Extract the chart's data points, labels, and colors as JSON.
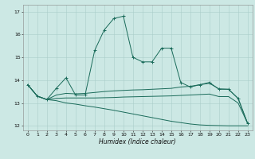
{
  "xlabel": "Humidex (Indice chaleur)",
  "bg_color": "#cce8e4",
  "grid_color": "#aaceca",
  "line_color": "#1a6b5a",
  "xlim": [
    -0.5,
    23.5
  ],
  "ylim": [
    11.8,
    17.3
  ],
  "yticks": [
    12,
    13,
    14,
    15,
    16,
    17
  ],
  "xticks": [
    0,
    1,
    2,
    3,
    4,
    5,
    6,
    7,
    8,
    9,
    10,
    11,
    12,
    13,
    14,
    15,
    16,
    17,
    18,
    19,
    20,
    21,
    22,
    23
  ],
  "y_max": [
    13.8,
    13.3,
    13.15,
    13.65,
    14.1,
    13.35,
    13.35,
    15.3,
    16.2,
    16.7,
    16.8,
    15.0,
    14.8,
    14.8,
    15.4,
    15.4,
    13.9,
    13.7,
    13.8,
    13.9,
    13.6,
    13.6,
    13.2,
    12.1
  ],
  "y_m2": [
    13.8,
    13.3,
    13.15,
    13.35,
    13.42,
    13.4,
    13.42,
    13.46,
    13.5,
    13.53,
    13.55,
    13.57,
    13.58,
    13.6,
    13.62,
    13.64,
    13.7,
    13.73,
    13.8,
    13.86,
    13.62,
    13.6,
    13.2,
    12.1
  ],
  "y_m3": [
    13.8,
    13.3,
    13.15,
    13.2,
    13.22,
    13.22,
    13.22,
    13.22,
    13.23,
    13.24,
    13.26,
    13.27,
    13.28,
    13.29,
    13.3,
    13.31,
    13.33,
    13.35,
    13.37,
    13.39,
    13.28,
    13.28,
    13.0,
    12.1
  ],
  "y_min": [
    13.8,
    13.3,
    13.15,
    13.1,
    13.0,
    12.95,
    12.88,
    12.82,
    12.75,
    12.68,
    12.6,
    12.52,
    12.44,
    12.36,
    12.28,
    12.2,
    12.14,
    12.08,
    12.04,
    12.02,
    12.01,
    12.0,
    12.0,
    12.0
  ]
}
